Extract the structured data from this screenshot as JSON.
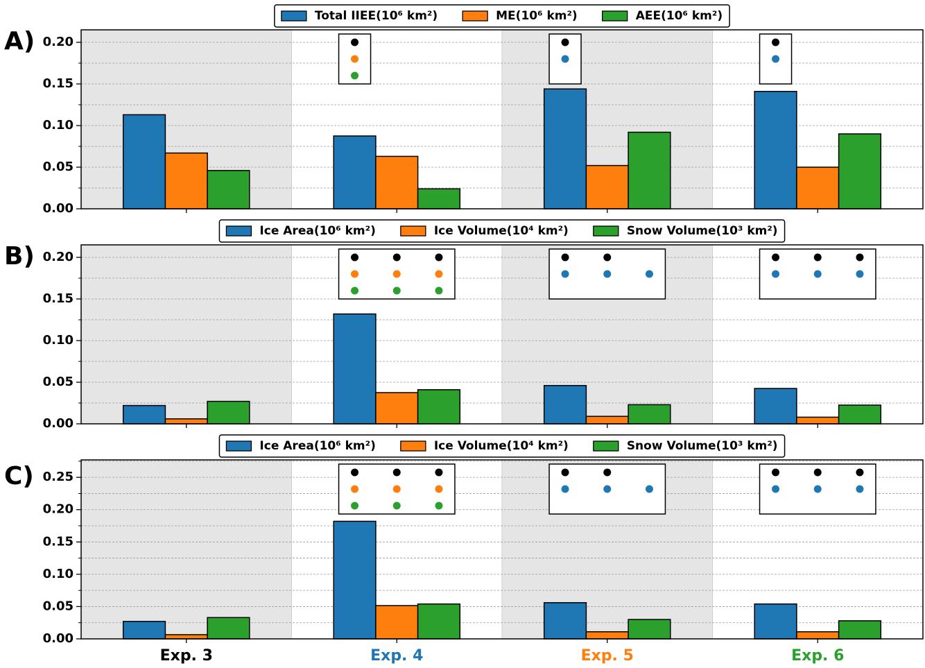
{
  "chart_data": [
    {
      "type": "bar",
      "label": "A)",
      "series": [
        {
          "name": "Total IIEE(10⁶ km²)",
          "color": "#1f77b4",
          "values": [
            0.113,
            0.0875,
            0.144,
            0.141
          ]
        },
        {
          "name": "ME(10⁶ km²)",
          "color": "#ff7f0e",
          "values": [
            0.067,
            0.063,
            0.052,
            0.05
          ]
        },
        {
          "name": "AEE(10⁶ km²)",
          "color": "#2ca02c",
          "values": [
            0.046,
            0.024,
            0.092,
            0.09
          ]
        }
      ],
      "ylim": [
        0,
        0.215
      ],
      "yticks": [
        {
          "value": 0,
          "label": "0.00"
        },
        {
          "value": 0.05,
          "label": "0.05"
        },
        {
          "value": 0.1,
          "label": "0.10"
        },
        {
          "value": 0.15,
          "label": "0.15"
        },
        {
          "value": 0.2,
          "label": "0.20"
        }
      ],
      "yticks_minor": [
        0.025,
        0.075,
        0.125,
        0.175
      ],
      "grid": true,
      "legend": "top",
      "shaded": [
        true,
        false,
        true,
        false
      ],
      "markers": [
        null,
        [
          [
            "#000000"
          ],
          [
            "#ff7f0e"
          ],
          [
            "#2ca02c"
          ]
        ],
        [
          [
            "#000000"
          ],
          [
            "#1f77b4"
          ]
        ],
        [
          [
            "#000000"
          ],
          [
            "#1f77b4"
          ]
        ]
      ]
    },
    {
      "type": "bar",
      "label": "B)",
      "series": [
        {
          "name": "Ice Area(10⁶ km²)",
          "color": "#1f77b4",
          "values": [
            0.022,
            0.132,
            0.046,
            0.0425
          ]
        },
        {
          "name": "Ice Volume(10⁴ km²)",
          "color": "#ff7f0e",
          "values": [
            0.006,
            0.0375,
            0.009,
            0.008
          ]
        },
        {
          "name": "Snow Volume(10³ km²)",
          "color": "#2ca02c",
          "values": [
            0.027,
            0.041,
            0.023,
            0.0225
          ]
        }
      ],
      "ylim": [
        0,
        0.215
      ],
      "yticks": [
        {
          "value": 0,
          "label": "0.00"
        },
        {
          "value": 0.05,
          "label": "0.05"
        },
        {
          "value": 0.1,
          "label": "0.10"
        },
        {
          "value": 0.15,
          "label": "0.15"
        },
        {
          "value": 0.2,
          "label": "0.20"
        }
      ],
      "yticks_minor": [
        0.025,
        0.075,
        0.125,
        0.175
      ],
      "grid": true,
      "legend": "top",
      "shaded": [
        true,
        false,
        true,
        false
      ],
      "markers": [
        null,
        [
          [
            "#000000",
            "#000000",
            "#000000"
          ],
          [
            "#ff7f0e",
            "#ff7f0e",
            "#ff7f0e"
          ],
          [
            "#2ca02c",
            "#2ca02c",
            "#2ca02c"
          ]
        ],
        [
          [
            "#000000",
            "#000000",
            null
          ],
          [
            "#1f77b4",
            "#1f77b4",
            "#1f77b4"
          ]
        ],
        [
          [
            "#000000",
            "#000000",
            "#000000"
          ],
          [
            "#1f77b4",
            "#1f77b4",
            "#1f77b4"
          ]
        ]
      ]
    },
    {
      "type": "bar",
      "label": "C)",
      "categories": [
        "Exp. 3",
        "Exp. 4",
        "Exp. 5",
        "Exp. 6"
      ],
      "category_colors": [
        "#000000",
        "#1f77b4",
        "#ff7f0e",
        "#2ca02c"
      ],
      "series": [
        {
          "name": "Ice Area(10⁶ km²)",
          "color": "#1f77b4",
          "values": [
            0.027,
            0.182,
            0.056,
            0.054
          ]
        },
        {
          "name": "Ice Volume(10⁴ km²)",
          "color": "#ff7f0e",
          "values": [
            0.0065,
            0.0515,
            0.011,
            0.011
          ]
        },
        {
          "name": "Snow Volume(10³ km²)",
          "color": "#2ca02c",
          "values": [
            0.033,
            0.054,
            0.03,
            0.028
          ]
        }
      ],
      "ylim": [
        0,
        0.277
      ],
      "yticks": [
        {
          "value": 0,
          "label": "0.00"
        },
        {
          "value": 0.05,
          "label": "0.05"
        },
        {
          "value": 0.1,
          "label": "0.10"
        },
        {
          "value": 0.15,
          "label": "0.15"
        },
        {
          "value": 0.2,
          "label": "0.20"
        },
        {
          "value": 0.25,
          "label": "0.25"
        }
      ],
      "yticks_minor": [
        0.025,
        0.075,
        0.125,
        0.175,
        0.225,
        0.275
      ],
      "grid": true,
      "legend": "top",
      "shaded": [
        true,
        false,
        true,
        false
      ],
      "markers": [
        null,
        [
          [
            "#000000",
            "#000000",
            "#000000"
          ],
          [
            "#ff7f0e",
            "#ff7f0e",
            "#ff7f0e"
          ],
          [
            "#2ca02c",
            "#2ca02c",
            "#2ca02c"
          ]
        ],
        [
          [
            "#000000",
            "#000000",
            null
          ],
          [
            "#1f77b4",
            "#1f77b4",
            "#1f77b4"
          ]
        ],
        [
          [
            "#000000",
            "#000000",
            "#000000"
          ],
          [
            "#1f77b4",
            "#1f77b4",
            "#1f77b4"
          ]
        ]
      ]
    }
  ]
}
